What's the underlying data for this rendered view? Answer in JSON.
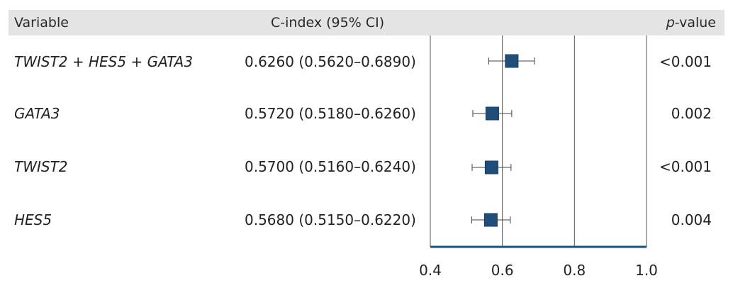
{
  "header": {
    "variable": "Variable",
    "cindex": "C-index (95% CI)",
    "pvalue_prefix": "p",
    "pvalue_suffix": "-value"
  },
  "rows": [
    {
      "variable": "TWIST2 + HES5 + GATA3",
      "ci_text": "0.6260 (0.5620–0.6890)",
      "p": "<0.001"
    },
    {
      "variable": "GATA3",
      "ci_text": "0.5720 (0.5180–0.6260)",
      "p": "0.002"
    },
    {
      "variable": "TWIST2",
      "ci_text": "0.5700 (0.5160–0.6240)",
      "p": "<0.001"
    },
    {
      "variable": "HES5",
      "ci_text": "0.5680 (0.5150–0.6220)",
      "p": "0.004"
    }
  ],
  "colors": {
    "marker": "#1f4e7a",
    "axis": "#1f4e7a",
    "header_bg": "#e4e4e4"
  },
  "chart_data": {
    "type": "scatter",
    "subtype": "forest-plot",
    "categories": [
      "TWIST2 + HES5 + GATA3",
      "GATA3",
      "TWIST2",
      "HES5"
    ],
    "series": [
      {
        "estimate": [
          0.626,
          0.572,
          0.57,
          0.568
        ],
        "lower": [
          0.562,
          0.518,
          0.516,
          0.515
        ],
        "upper": [
          0.689,
          0.626,
          0.624,
          0.622
        ]
      }
    ],
    "xlim": [
      0.4,
      1.0
    ],
    "xticks": [
      "0.4",
      "0.6",
      "0.8",
      "1.0"
    ],
    "reference_lines": [
      0.6,
      0.8,
      1.0
    ],
    "grid": false
  }
}
